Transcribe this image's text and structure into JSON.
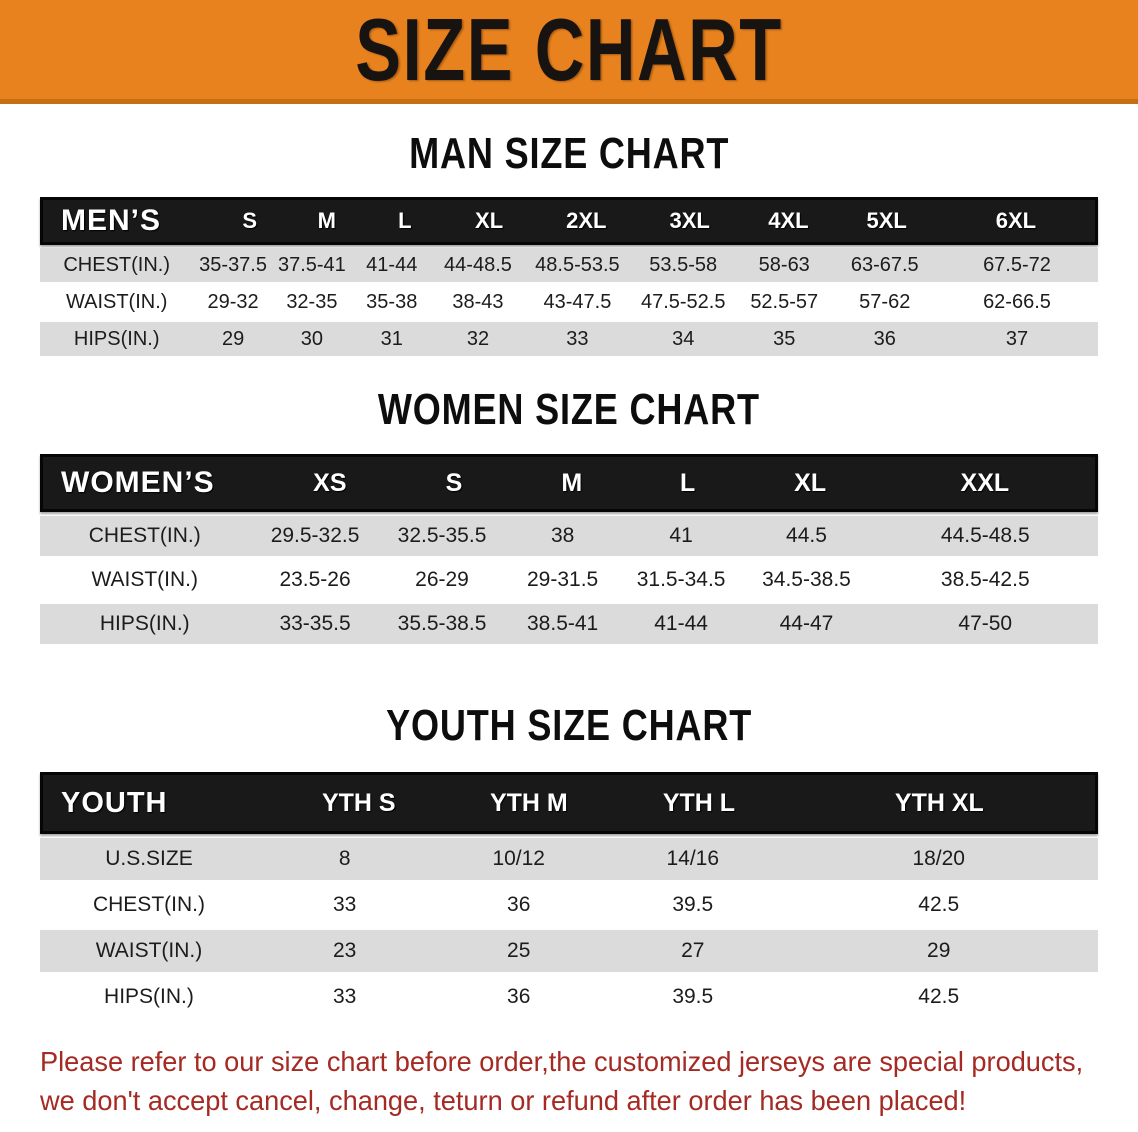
{
  "banner": {
    "title": "SIZE CHART"
  },
  "colors": {
    "banner_bg": "#E8821E",
    "banner_text": "#171310",
    "header_bar_bg": "#191919",
    "stripe_gray": "#DBDBDB",
    "footer_red": "#A42A23"
  },
  "sections": [
    {
      "heading": "MAN SIZE CHART",
      "table": {
        "label": "MEN’S",
        "columns": [
          "S",
          "M",
          "L",
          "XL",
          "2XL",
          "3XL",
          "4XL",
          "5XL",
          "6XL"
        ],
        "rows": [
          {
            "label": "CHEST(IN.)",
            "values": [
              "35-37.5",
              "37.5-41",
              "41-44",
              "44-48.5",
              "48.5-53.5",
              "53.5-58",
              "58-63",
              "63-67.5",
              "67.5-72"
            ]
          },
          {
            "label": "WAIST(IN.)",
            "values": [
              "29-32",
              "32-35",
              "35-38",
              "38-43",
              "43-47.5",
              "47.5-52.5",
              "52.5-57",
              "57-62",
              "62-66.5"
            ]
          },
          {
            "label": "HIPS(IN.)",
            "values": [
              "29",
              "30",
              "31",
              "32",
              "33",
              "34",
              "35",
              "36",
              "37"
            ]
          }
        ]
      }
    },
    {
      "heading": "WOMEN SIZE CHART",
      "table": {
        "label": "WOMEN’S",
        "columns": [
          "XS",
          "S",
          "M",
          "L",
          "XL",
          "XXL"
        ],
        "rows": [
          {
            "label": "CHEST(IN.)",
            "values": [
              "29.5-32.5",
              "32.5-35.5",
              "38",
              "41",
              "44.5",
              "44.5-48.5"
            ]
          },
          {
            "label": "WAIST(IN.)",
            "values": [
              "23.5-26",
              "26-29",
              "29-31.5",
              "31.5-34.5",
              "34.5-38.5",
              "38.5-42.5"
            ]
          },
          {
            "label": "HIPS(IN.)",
            "values": [
              "33-35.5",
              "35.5-38.5",
              "38.5-41",
              "41-44",
              "44-47",
              "47-50"
            ]
          }
        ]
      }
    },
    {
      "heading": "YOUTH SIZE CHART",
      "table": {
        "label": "YOUTH",
        "columns": [
          "YTH S",
          "YTH M",
          "YTH L",
          "YTH XL"
        ],
        "rows": [
          {
            "label": "U.S.SIZE",
            "values": [
              "8",
              "10/12",
              "14/16",
              "18/20"
            ]
          },
          {
            "label": "CHEST(IN.)",
            "values": [
              "33",
              "36",
              "39.5",
              "42.5"
            ]
          },
          {
            "label": "WAIST(IN.)",
            "values": [
              "23",
              "25",
              "27",
              "29"
            ]
          },
          {
            "label": "HIPS(IN.)",
            "values": [
              "33",
              "36",
              "39.5",
              "42.5"
            ]
          }
        ]
      }
    }
  ],
  "footer": {
    "line1": "Please refer to our size chart before order,the customized jerseys are special products,",
    "line2": "we don't accept cancel, change, teturn or refund after order has been placed!"
  }
}
